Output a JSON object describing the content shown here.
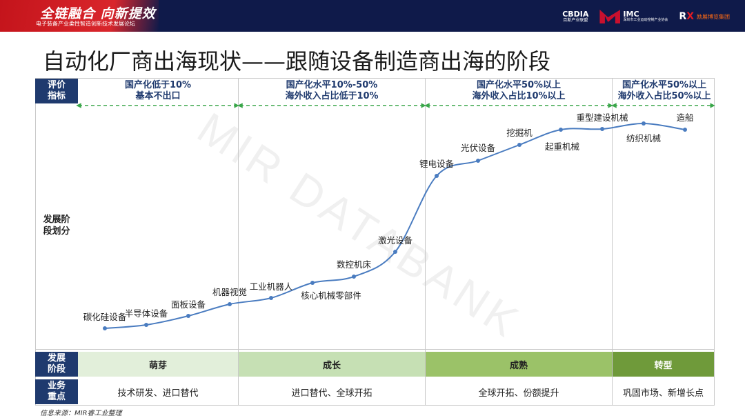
{
  "banner": {
    "title": "全链融合 向新提效",
    "subtitle": "电子装备产业柔性智造创新技术发展论坛",
    "logos": [
      {
        "name": "CBDIA",
        "sub": "百斯产业联盟"
      },
      {
        "name": "IMC",
        "sub": "深圳市工业运动控制产业协会"
      },
      {
        "name": "RX",
        "sub": "励展博览集团"
      }
    ]
  },
  "title": "自动化厂商出海现状——跟随设备制造商出海的阶段",
  "row_headers": {
    "evaluation": [
      "评价",
      "指标"
    ],
    "development": [
      "发展阶",
      "段划分"
    ],
    "stage": [
      "发展",
      "阶段"
    ],
    "business": [
      "业务",
      "重点"
    ]
  },
  "columns": [
    {
      "criteria": [
        "国产化低于10%",
        "基本不出口"
      ],
      "stage": "萌芽",
      "focus": "技术研发、进口替代",
      "stage_color": "#e2efda"
    },
    {
      "criteria": [
        "国产化水平10%-50%",
        "海外收入占比低于10%"
      ],
      "stage": "成长",
      "focus": "进口替代、全球开拓",
      "stage_color": "#c6e0b4"
    },
    {
      "criteria": [
        "国产化水平50%以上",
        "海外收入占比10%以上"
      ],
      "stage": "成熟",
      "focus": "全球开拓、份额提升",
      "stage_color": "#9bc268"
    },
    {
      "criteria": [
        "国产化水平50%以上",
        "海外收入占比50%以上"
      ],
      "stage": "转型",
      "focus": "巩固市场、新增长点",
      "stage_color": "#6f9a3a"
    }
  ],
  "curve": {
    "line_color": "#4a7cc0",
    "points": [
      {
        "label": "碳化硅设备"
      },
      {
        "label": "半导体设备"
      },
      {
        "label": "面板设备"
      },
      {
        "label": "机器视觉"
      },
      {
        "label": "工业机器人"
      },
      {
        "label": "核心机械零部件"
      },
      {
        "label": "数控机床"
      },
      {
        "label": "激光设备"
      },
      {
        "label": "锂电设备"
      },
      {
        "label": "光伏设备"
      },
      {
        "label": "挖掘机"
      },
      {
        "label": "起重机械"
      },
      {
        "label": "重型建设机械"
      },
      {
        "label": "纺织机械"
      },
      {
        "label": "造船"
      }
    ]
  },
  "watermark": "MIR DATABANK",
  "source": "信息来源：MIR睿工业整理"
}
